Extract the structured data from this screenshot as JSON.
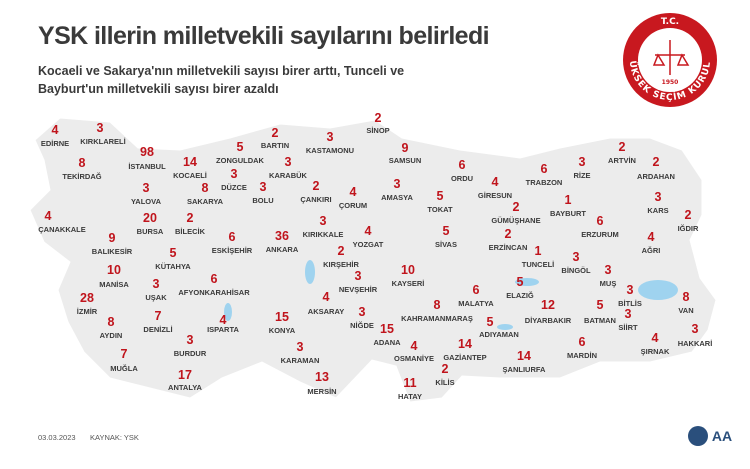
{
  "header": {
    "title": "YSK illerin milletvekili sayılarını belirledi",
    "subtitle": [
      "Kocaeli ve Sakarya'nın milletvekili sayısı birer arttı, Tunceli ve",
      "Bayburt'un milletvekili sayısı birer azaldı"
    ]
  },
  "logo": {
    "top": "T.C.",
    "ring": "YÜKSEK SEÇİM KURULU",
    "year": "1950"
  },
  "provinces": [
    {
      "name": "EDİRNE",
      "seats": 4
    },
    {
      "name": "KIRKLARELİ",
      "seats": 3
    },
    {
      "name": "İSTANBUL",
      "seats": 98
    },
    {
      "name": "TEKİRDAĞ",
      "seats": 8
    },
    {
      "name": "KOCAELİ",
      "seats": 14
    },
    {
      "name": "ZONGULDAK",
      "seats": 5
    },
    {
      "name": "BARTIN",
      "seats": 2
    },
    {
      "name": "KASTAMONU",
      "seats": 3
    },
    {
      "name": "SİNOP",
      "seats": 2
    },
    {
      "name": "SAMSUN",
      "seats": 9
    },
    {
      "name": "ORDU",
      "seats": 6
    },
    {
      "name": "TRABZON",
      "seats": 6
    },
    {
      "name": "RİZE",
      "seats": 3
    },
    {
      "name": "ARTVİN",
      "seats": 2
    },
    {
      "name": "ARDAHAN",
      "seats": 2
    },
    {
      "name": "ÇANAKKALE",
      "seats": 4
    },
    {
      "name": "YALOVA",
      "seats": 3
    },
    {
      "name": "SAKARYA",
      "seats": 8
    },
    {
      "name": "DÜZCE",
      "seats": 3
    },
    {
      "name": "BOLU",
      "seats": 3
    },
    {
      "name": "KARABÜK",
      "seats": 3
    },
    {
      "name": "ÇANKIRI",
      "seats": 2
    },
    {
      "name": "ÇORUM",
      "seats": 4
    },
    {
      "name": "AMASYA",
      "seats": 3
    },
    {
      "name": "TOKAT",
      "seats": 5
    },
    {
      "name": "GİRESUN",
      "seats": 4
    },
    {
      "name": "GÜMÜŞHANE",
      "seats": 2
    },
    {
      "name": "BAYBURT",
      "seats": 1
    },
    {
      "name": "ERZURUM",
      "seats": 6
    },
    {
      "name": "KARS",
      "seats": 3
    },
    {
      "name": "IĞDIR",
      "seats": 2
    },
    {
      "name": "BURSA",
      "seats": 20
    },
    {
      "name": "BİLECİK",
      "seats": 2
    },
    {
      "name": "BALIKESİR",
      "seats": 9
    },
    {
      "name": "ESKİŞEHİR",
      "seats": 6
    },
    {
      "name": "ANKARA",
      "seats": 36
    },
    {
      "name": "KIRIKKALE",
      "seats": 3
    },
    {
      "name": "YOZGAT",
      "seats": 4
    },
    {
      "name": "SİVAS",
      "seats": 5
    },
    {
      "name": "ERZİNCAN",
      "seats": 2
    },
    {
      "name": "AĞRI",
      "seats": 4
    },
    {
      "name": "KÜTAHYA",
      "seats": 5
    },
    {
      "name": "KIRŞEHİR",
      "seats": 2
    },
    {
      "name": "TUNCELİ",
      "seats": 1
    },
    {
      "name": "BİNGÖL",
      "seats": 3
    },
    {
      "name": "MANİSA",
      "seats": 10
    },
    {
      "name": "AFYONKARAHİSAR",
      "seats": 6
    },
    {
      "name": "NEVŞEHİR",
      "seats": 3
    },
    {
      "name": "KAYSERİ",
      "seats": 10
    },
    {
      "name": "MUŞ",
      "seats": 3
    },
    {
      "name": "UŞAK",
      "seats": 3
    },
    {
      "name": "İZMİR",
      "seats": 28
    },
    {
      "name": "MALATYA",
      "seats": 6
    },
    {
      "name": "ELAZIĞ",
      "seats": 5
    },
    {
      "name": "BİTLİS",
      "seats": 3
    },
    {
      "name": "VAN",
      "seats": 8
    },
    {
      "name": "AKSARAY",
      "seats": 4
    },
    {
      "name": "KAHRAMANMARAŞ",
      "seats": 8
    },
    {
      "name": "ADIYAMAN",
      "seats": 5
    },
    {
      "name": "DİYARBAKIR",
      "seats": 12
    },
    {
      "name": "BATMAN",
      "seats": 5
    },
    {
      "name": "SİİRT",
      "seats": 3
    },
    {
      "name": "DENİZLİ",
      "seats": 7
    },
    {
      "name": "AYDIN",
      "seats": 8
    },
    {
      "name": "ISPARTA",
      "seats": 4
    },
    {
      "name": "KONYA",
      "seats": 15
    },
    {
      "name": "NİĞDE",
      "seats": 3
    },
    {
      "name": "ADANA",
      "seats": 15
    },
    {
      "name": "OSMANİYE",
      "seats": 4
    },
    {
      "name": "GAZİANTEP",
      "seats": 14
    },
    {
      "name": "ŞANLIURFA",
      "seats": 14
    },
    {
      "name": "MARDİN",
      "seats": 6
    },
    {
      "name": "ŞIRNAK",
      "seats": 4
    },
    {
      "name": "HAKKARİ",
      "seats": 3
    },
    {
      "name": "BURDUR",
      "seats": 3
    },
    {
      "name": "MUĞLA",
      "seats": 7
    },
    {
      "name": "KARAMAN",
      "seats": 3
    },
    {
      "name": "KİLİS",
      "seats": 2
    },
    {
      "name": "ANTALYA",
      "seats": 17
    },
    {
      "name": "MERSİN",
      "seats": 13
    },
    {
      "name": "HATAY",
      "seats": 11
    }
  ],
  "footer": {
    "date": "03.03.2023",
    "source": "KAYNAK: YSK",
    "brand": "AA"
  }
}
